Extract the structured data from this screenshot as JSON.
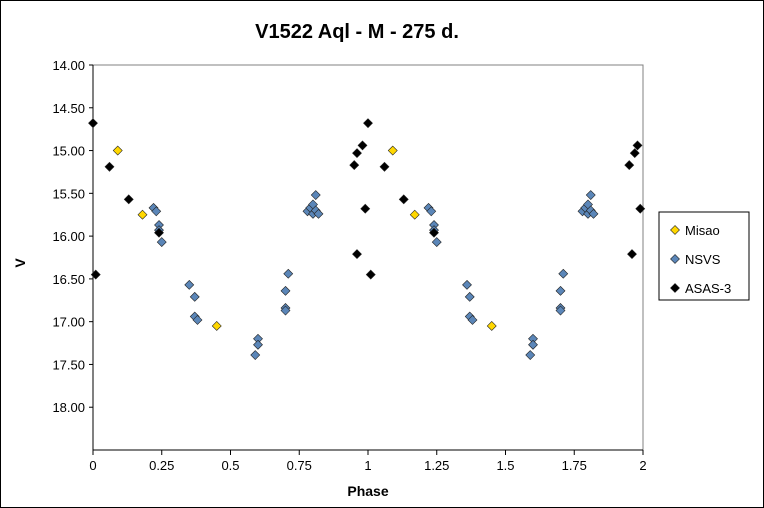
{
  "chart_data": {
    "type": "scatter",
    "title": "V1522 Aql - M - 275 d.",
    "xlabel": "Phase",
    "ylabel": "V",
    "xlim": [
      0,
      2
    ],
    "ylim": [
      14.0,
      18.5
    ],
    "y_inverted": true,
    "grid": false,
    "legend_position": "right",
    "x_ticks": [
      {
        "value": 0,
        "label": "0"
      },
      {
        "value": 0.25,
        "label": "0.25"
      },
      {
        "value": 0.5,
        "label": "0.5"
      },
      {
        "value": 0.75,
        "label": "0.75"
      },
      {
        "value": 1,
        "label": "1"
      },
      {
        "value": 1.25,
        "label": "1.25"
      },
      {
        "value": 1.5,
        "label": "1.5"
      },
      {
        "value": 1.75,
        "label": "1.75"
      },
      {
        "value": 2,
        "label": "2"
      }
    ],
    "y_ticks": [
      {
        "value": 14.0,
        "label": "14.00"
      },
      {
        "value": 14.5,
        "label": "14.50"
      },
      {
        "value": 15.0,
        "label": "15.00"
      },
      {
        "value": 15.5,
        "label": "15.50"
      },
      {
        "value": 16.0,
        "label": "16.00"
      },
      {
        "value": 16.5,
        "label": "16.50"
      },
      {
        "value": 17.0,
        "label": "17.00"
      },
      {
        "value": 17.5,
        "label": "17.50"
      },
      {
        "value": 18.0,
        "label": "18.00"
      }
    ],
    "series": [
      {
        "name": "Misao",
        "color": "#ffd700",
        "marker": "diamond",
        "points": [
          [
            0.09,
            15.0
          ],
          [
            0.18,
            15.75
          ],
          [
            0.45,
            17.05
          ],
          [
            1.09,
            15.0
          ],
          [
            1.17,
            15.75
          ],
          [
            1.45,
            17.05
          ]
        ]
      },
      {
        "name": "NSVS",
        "color": "#5b86b8",
        "marker": "diamond",
        "points": [
          [
            0.22,
            15.67
          ],
          [
            0.23,
            15.71
          ],
          [
            0.24,
            15.87
          ],
          [
            0.24,
            15.93
          ],
          [
            0.25,
            16.07
          ],
          [
            0.35,
            16.57
          ],
          [
            0.37,
            16.71
          ],
          [
            0.37,
            16.94
          ],
          [
            0.38,
            16.98
          ],
          [
            0.59,
            17.39
          ],
          [
            0.6,
            17.2
          ],
          [
            0.6,
            17.27
          ],
          [
            0.7,
            16.84
          ],
          [
            0.7,
            16.87
          ],
          [
            0.7,
            16.64
          ],
          [
            0.71,
            16.44
          ],
          [
            0.78,
            15.71
          ],
          [
            0.79,
            15.67
          ],
          [
            0.8,
            15.74
          ],
          [
            0.8,
            15.63
          ],
          [
            0.81,
            15.52
          ],
          [
            0.81,
            15.7
          ],
          [
            0.82,
            15.74
          ],
          [
            1.22,
            15.67
          ],
          [
            1.23,
            15.71
          ],
          [
            1.24,
            15.87
          ],
          [
            1.24,
            15.93
          ],
          [
            1.25,
            16.07
          ],
          [
            1.36,
            16.57
          ],
          [
            1.37,
            16.71
          ],
          [
            1.37,
            16.94
          ],
          [
            1.38,
            16.98
          ],
          [
            1.59,
            17.39
          ],
          [
            1.6,
            17.2
          ],
          [
            1.6,
            17.27
          ],
          [
            1.7,
            16.84
          ],
          [
            1.7,
            16.87
          ],
          [
            1.7,
            16.64
          ],
          [
            1.71,
            16.44
          ],
          [
            1.78,
            15.71
          ],
          [
            1.79,
            15.67
          ],
          [
            1.8,
            15.74
          ],
          [
            1.8,
            15.63
          ],
          [
            1.81,
            15.52
          ],
          [
            1.81,
            15.7
          ],
          [
            1.82,
            15.74
          ]
        ]
      },
      {
        "name": "ASAS-3",
        "color": "#000000",
        "marker": "diamond",
        "points": [
          [
            0.0,
            14.68
          ],
          [
            0.01,
            16.45
          ],
          [
            0.06,
            15.19
          ],
          [
            0.13,
            15.57
          ],
          [
            0.24,
            15.96
          ],
          [
            0.95,
            15.17
          ],
          [
            0.96,
            16.21
          ],
          [
            0.96,
            15.03
          ],
          [
            0.98,
            14.94
          ],
          [
            0.99,
            15.68
          ],
          [
            1.0,
            14.68
          ],
          [
            1.01,
            16.45
          ],
          [
            1.06,
            15.19
          ],
          [
            1.13,
            15.57
          ],
          [
            1.24,
            15.96
          ],
          [
            1.95,
            15.17
          ],
          [
            1.96,
            16.21
          ],
          [
            1.97,
            15.03
          ],
          [
            1.98,
            14.94
          ],
          [
            1.99,
            15.68
          ]
        ]
      }
    ]
  }
}
